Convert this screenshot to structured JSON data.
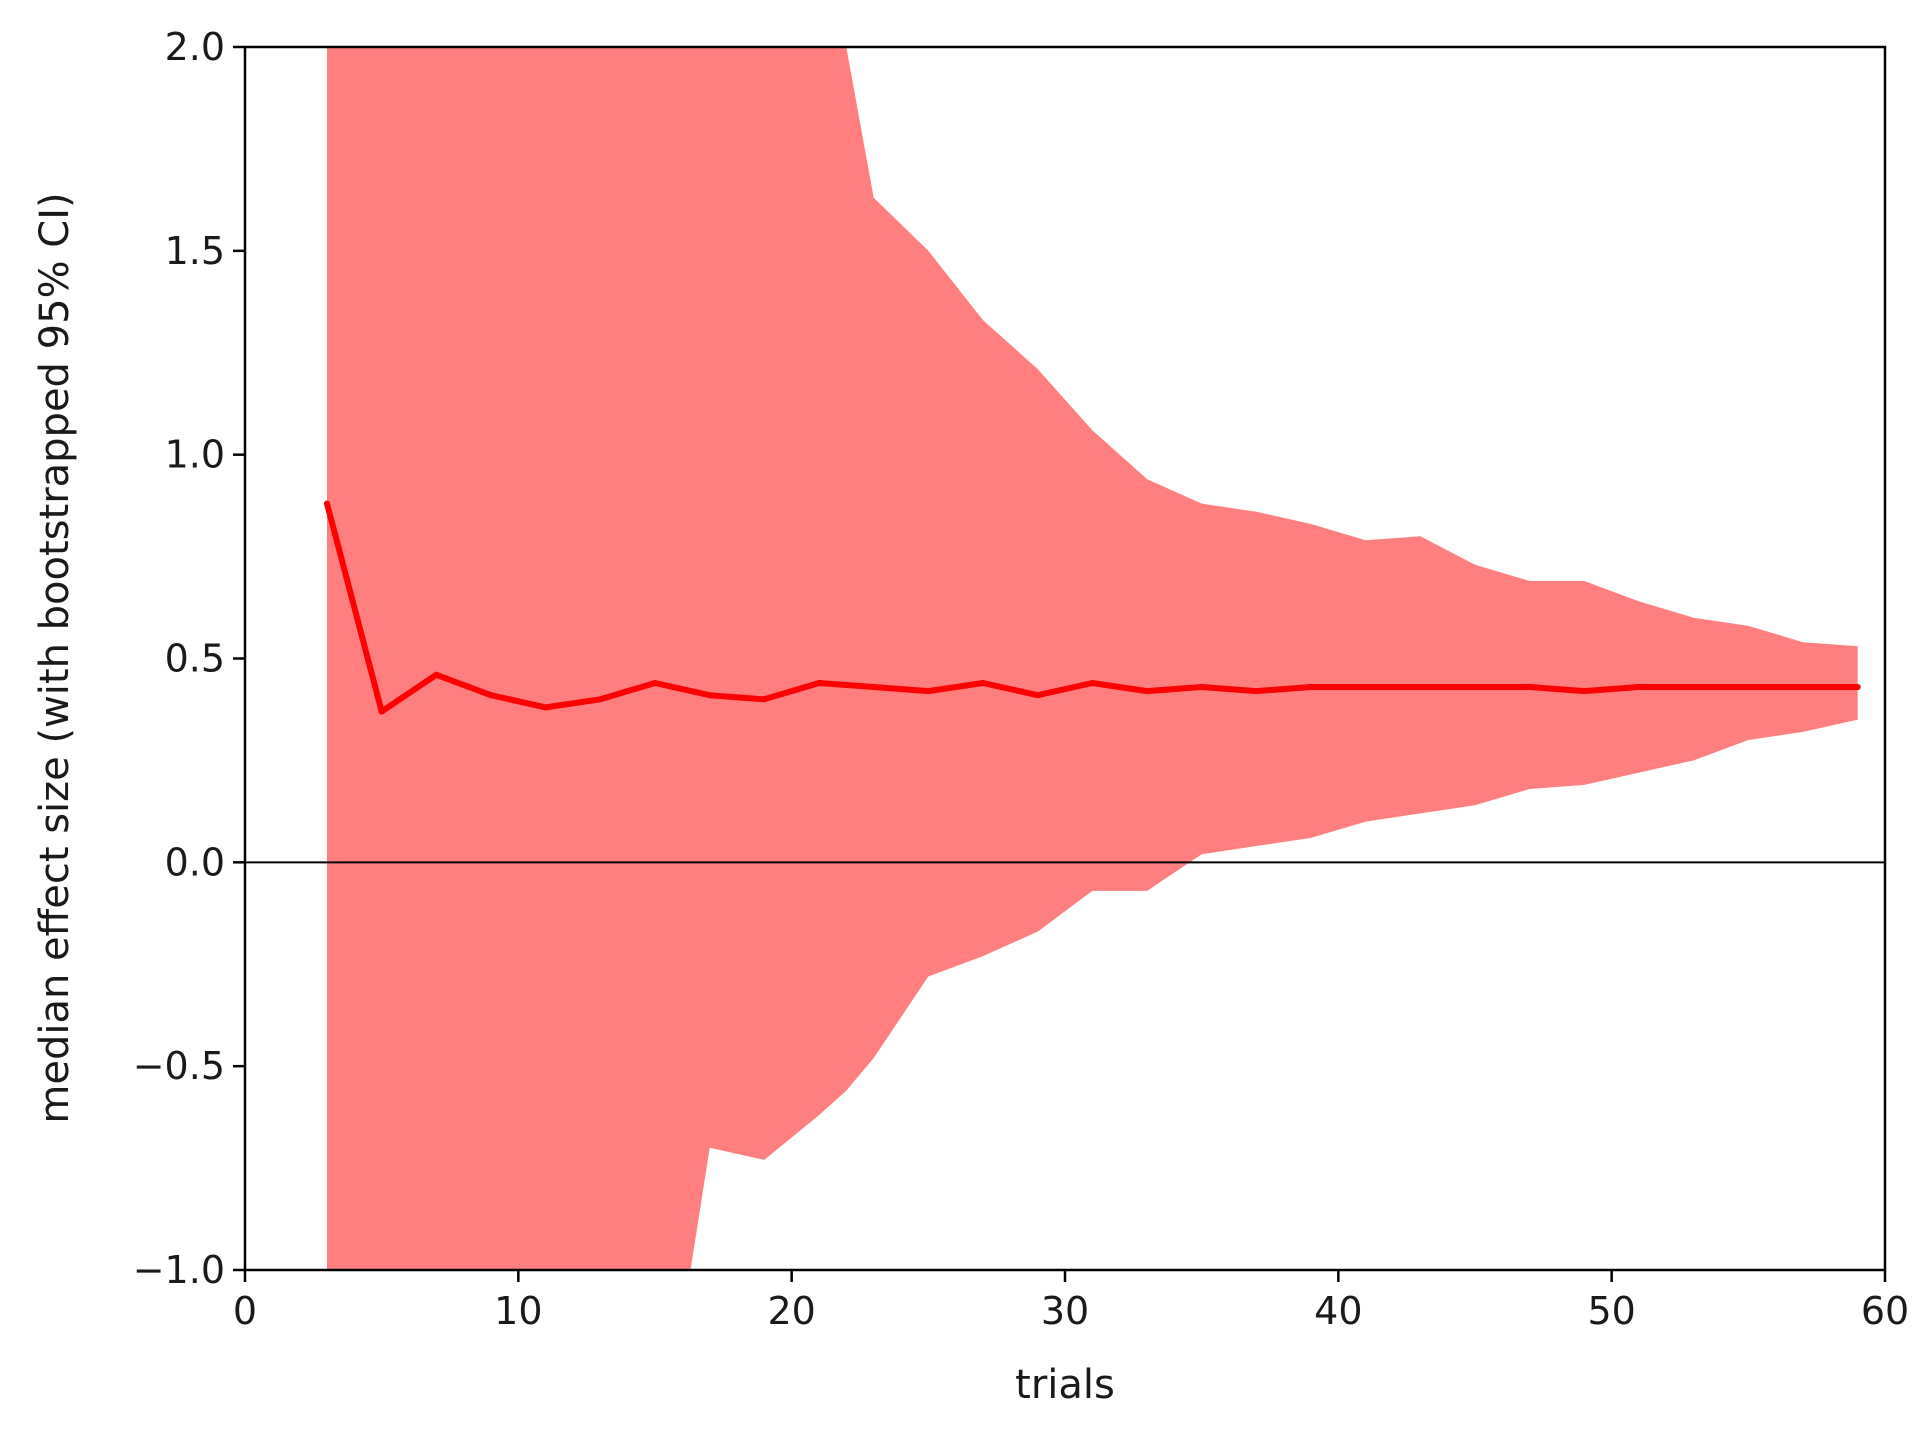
{
  "chart_data": {
    "type": "area",
    "title": "",
    "xlabel": "trials",
    "ylabel": "median effect size (with bootstrapped 95% CI)",
    "xlim": [
      0,
      60
    ],
    "ylim": [
      -1.0,
      2.0
    ],
    "x_ticks": [
      0,
      10,
      20,
      30,
      40,
      50,
      60
    ],
    "x_tick_labels": [
      "0",
      "10",
      "20",
      "30",
      "40",
      "50",
      "60"
    ],
    "y_ticks": [
      -1.0,
      -0.5,
      0.0,
      0.5,
      1.0,
      1.5,
      2.0
    ],
    "y_tick_labels": [
      "−1.0",
      "−0.5",
      "0.0",
      "0.5",
      "1.0",
      "1.5",
      "2.0"
    ],
    "grid": false,
    "reference_line_y": 0.0,
    "colors": {
      "median_line": "#ff0000",
      "ci_band": "#ff7f7f",
      "zero_line": "#000000",
      "axes": "#000000"
    },
    "series": [
      {
        "kind": "line",
        "x": [
          3,
          5,
          7,
          9,
          11,
          13,
          15,
          17,
          19,
          21,
          23,
          25,
          27,
          29,
          31,
          33,
          35,
          37,
          39,
          41,
          43,
          45,
          47,
          49,
          51,
          53,
          55,
          57,
          59
        ],
        "y": [
          0.88,
          0.37,
          0.46,
          0.41,
          0.38,
          0.4,
          0.44,
          0.41,
          0.4,
          0.44,
          0.43,
          0.42,
          0.44,
          0.41,
          0.44,
          0.42,
          0.43,
          0.42,
          0.43,
          0.43,
          0.43,
          0.43,
          0.43,
          0.42,
          0.43,
          0.43,
          0.43,
          0.43,
          0.43
        ]
      },
      {
        "kind": "band",
        "x": [
          3,
          5,
          7,
          9,
          11,
          13,
          15,
          16.3,
          17,
          19,
          21,
          22,
          23,
          25,
          27,
          29,
          31,
          33,
          35,
          37,
          39,
          41,
          43,
          45,
          47,
          49,
          51,
          53,
          55,
          57,
          59
        ],
        "upper": [
          2.0,
          2.0,
          2.0,
          2.0,
          2.0,
          2.0,
          2.0,
          2.0,
          2.0,
          2.0,
          2.0,
          2.0,
          1.63,
          1.5,
          1.33,
          1.21,
          1.06,
          0.94,
          0.88,
          0.86,
          0.83,
          0.79,
          0.8,
          0.73,
          0.69,
          0.69,
          0.64,
          0.6,
          0.58,
          0.54,
          0.53
        ],
        "lower": [
          -1.0,
          -1.0,
          -1.0,
          -1.0,
          -1.0,
          -1.0,
          -1.0,
          -1.0,
          -0.7,
          -0.73,
          -0.62,
          -0.56,
          -0.48,
          -0.28,
          -0.23,
          -0.17,
          -0.07,
          -0.07,
          0.02,
          0.04,
          0.06,
          0.1,
          0.12,
          0.14,
          0.18,
          0.19,
          0.22,
          0.25,
          0.3,
          0.32,
          0.35
        ]
      }
    ]
  }
}
